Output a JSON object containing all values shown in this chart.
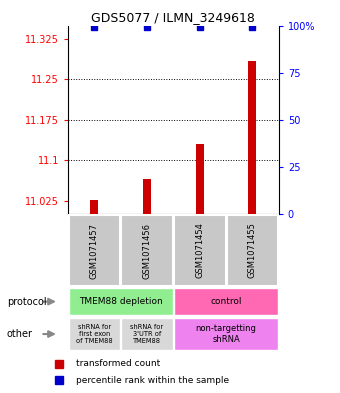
{
  "title": "GDS5077 / ILMN_3249618",
  "samples": [
    "GSM1071457",
    "GSM1071456",
    "GSM1071454",
    "GSM1071455"
  ],
  "red_values": [
    11.027,
    11.065,
    11.13,
    11.285
  ],
  "blue_values": [
    99,
    99,
    99,
    99
  ],
  "ylim_left": [
    11.0,
    11.35
  ],
  "ylim_right": [
    0,
    100
  ],
  "yticks_left": [
    11.025,
    11.1,
    11.175,
    11.25,
    11.325
  ],
  "yticks_right": [
    0,
    25,
    50,
    75,
    100
  ],
  "ytick_labels_left": [
    "11.025",
    "11.1",
    "11.175",
    "11.25",
    "11.325"
  ],
  "ytick_labels_right": [
    "0",
    "25",
    "50",
    "75",
    "100%"
  ],
  "protocol_group_colors": [
    "#90ee90",
    "#ff69b4"
  ],
  "other_colors": [
    "#d8d8d8",
    "#d8d8d8",
    "#ee82ee"
  ],
  "row_label_protocol": "protocol",
  "row_label_other": "other",
  "legend_red": "transformed count",
  "legend_blue": "percentile rank within the sample",
  "bar_color": "#cc0000",
  "dot_color": "#0000cc",
  "sample_box_color": "#c8c8c8",
  "grid_line_color": "black",
  "bar_width": 0.15
}
